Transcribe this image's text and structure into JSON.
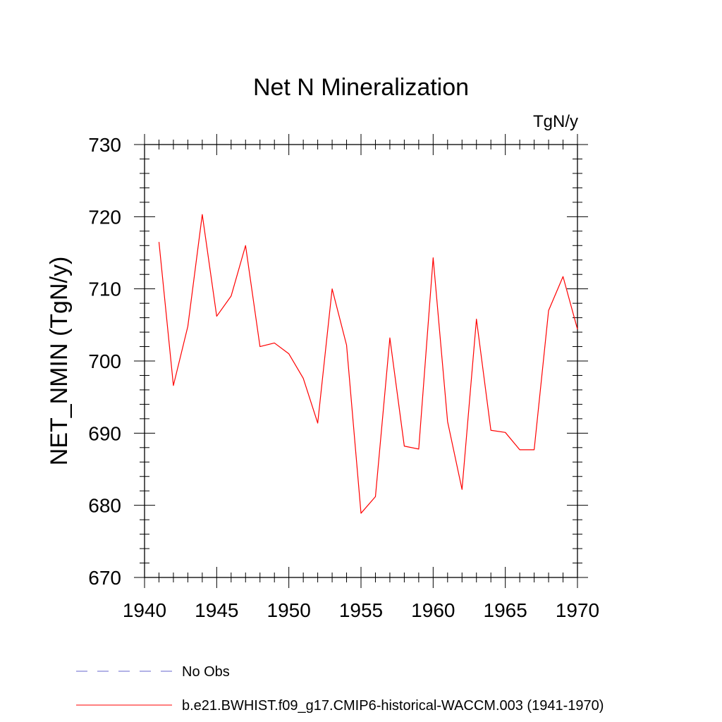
{
  "chart_data": {
    "type": "line",
    "title": "Net N Mineralization",
    "units_label": "TgN/y",
    "xlabel": "",
    "ylabel": "NET_NMIN  (TgN/y)",
    "xlim": [
      1940,
      1970
    ],
    "ylim": [
      670,
      730
    ],
    "x_ticks": [
      "1940",
      "1945",
      "1950",
      "1955",
      "1960",
      "1965",
      "1970"
    ],
    "y_ticks": [
      "670",
      "680",
      "690",
      "700",
      "710",
      "720",
      "730"
    ],
    "series": [
      {
        "name": "b.e21.BWHIST.f09_g17.CMIP6-historical-WACCM.003 (1941-1970)",
        "color": "#ff0000",
        "x": [
          1941,
          1942,
          1943,
          1944,
          1945,
          1946,
          1947,
          1948,
          1949,
          1950,
          1951,
          1952,
          1953,
          1954,
          1955,
          1956,
          1957,
          1958,
          1959,
          1960,
          1961,
          1962,
          1963,
          1964,
          1965,
          1966,
          1967,
          1968,
          1969,
          1970
        ],
        "values": [
          716.5,
          696.6,
          704.8,
          720.3,
          706.2,
          709.0,
          716.0,
          702.0,
          702.5,
          701.0,
          697.6,
          691.4,
          710.0,
          702.2,
          678.9,
          681.2,
          703.2,
          688.2,
          687.8,
          714.3,
          691.6,
          682.2,
          705.8,
          690.4,
          690.1,
          687.7,
          687.7,
          707.0,
          711.7,
          704.4
        ]
      }
    ],
    "legend": [
      {
        "label": "No Obs",
        "color": "#6666cc",
        "style": "dashed"
      },
      {
        "label": "b.e21.BWHIST.f09_g17.CMIP6-historical-WACCM.003 (1941-1970)",
        "color": "#ff0000",
        "style": "solid"
      }
    ],
    "legend_position": "bottom-left"
  }
}
